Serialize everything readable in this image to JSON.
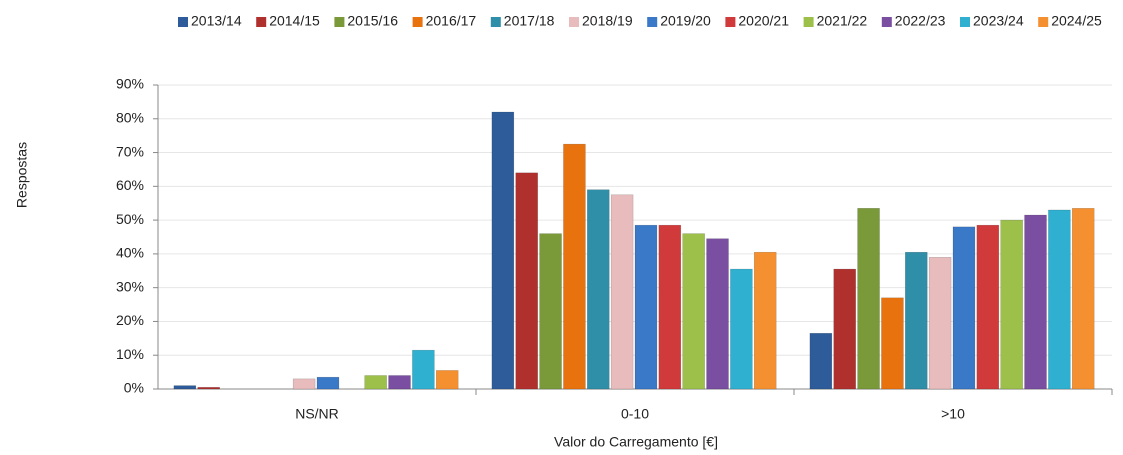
{
  "chart_data": {
    "type": "bar",
    "x_label": "Valor do Carregamento [€]",
    "y_label": "Respostas",
    "categories": [
      "NS/NR",
      "0-10",
      ">10"
    ],
    "series": [
      {
        "name": "2013/14",
        "color": "#2e5c9a",
        "values": [
          1,
          82,
          16.5
        ]
      },
      {
        "name": "2014/15",
        "color": "#b0302e",
        "values": [
          0.5,
          64,
          35.5
        ]
      },
      {
        "name": "2015/16",
        "color": "#7a9a3a",
        "values": [
          0,
          46,
          53.5
        ]
      },
      {
        "name": "2016/17",
        "color": "#e8730e",
        "values": [
          0,
          72.5,
          27
        ]
      },
      {
        "name": "2017/18",
        "color": "#2f8ea8",
        "values": [
          0,
          59,
          40.5
        ]
      },
      {
        "name": "2018/19",
        "color": "#e8bcbc",
        "values": [
          3,
          57.5,
          39
        ]
      },
      {
        "name": "2019/20",
        "color": "#3a78c8",
        "values": [
          3.5,
          48.5,
          48
        ]
      },
      {
        "name": "2020/21",
        "color": "#d03a3a",
        "values": [
          0,
          48.5,
          48.5
        ]
      },
      {
        "name": "2021/22",
        "color": "#9cc04a",
        "values": [
          4,
          46,
          50
        ]
      },
      {
        "name": "2022/23",
        "color": "#7a4ea0",
        "values": [
          4,
          44.5,
          51.5
        ]
      },
      {
        "name": "2023/24",
        "color": "#30b0d0",
        "values": [
          11.5,
          35.5,
          53
        ]
      },
      {
        "name": "2024/25",
        "color": "#f59030",
        "values": [
          5.5,
          40.5,
          53.5
        ]
      }
    ],
    "ylim": [
      0,
      90
    ],
    "yticks": [
      {
        "value": 0,
        "label": "0%"
      },
      {
        "value": 10,
        "label": "10%"
      },
      {
        "value": 20,
        "label": "20%"
      },
      {
        "value": 30,
        "label": "30%"
      },
      {
        "value": 40,
        "label": "40%"
      },
      {
        "value": 50,
        "label": "50%"
      },
      {
        "value": 60,
        "label": "60%"
      },
      {
        "value": 70,
        "label": "70%"
      },
      {
        "value": 80,
        "label": "80%"
      },
      {
        "value": 90,
        "label": "90%"
      }
    ],
    "grid": true,
    "legend": "top"
  }
}
